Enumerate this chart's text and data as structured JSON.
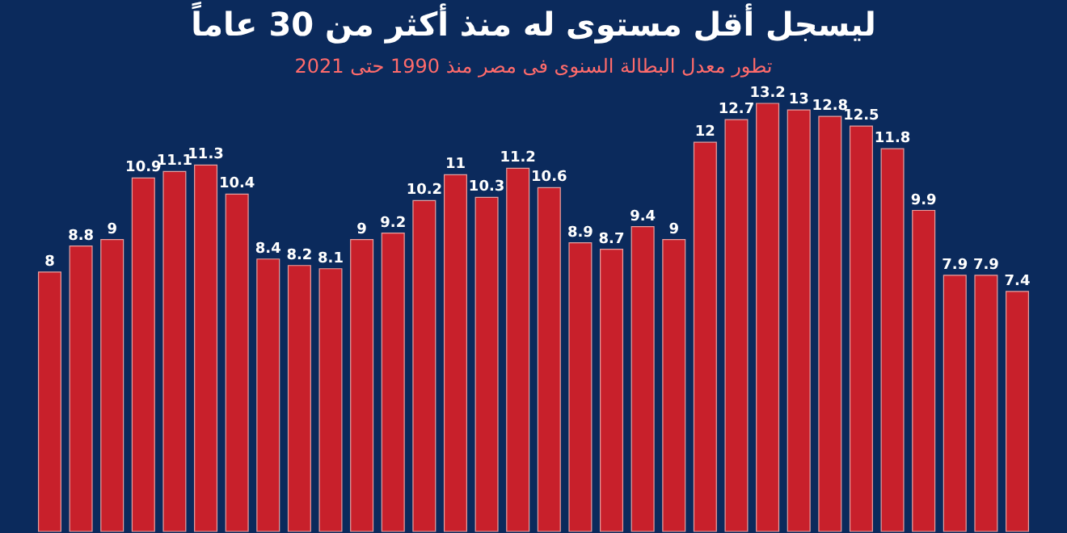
{
  "chart_data": {
    "type": "bar",
    "title": "ليسجل أقل مستوى له منذ أكثر من 30 عاماً",
    "subtitle": "تطور معدل البطالة السنوى فى مصر منذ 1990 حتى 2021",
    "categories": [
      null,
      null,
      null,
      null,
      null,
      null,
      null,
      null,
      null,
      null,
      null,
      null,
      null,
      null,
      null,
      null,
      null,
      null,
      null,
      null,
      null,
      null,
      null,
      null,
      null,
      null,
      null,
      null,
      null,
      null,
      null,
      null
    ],
    "values": [
      8,
      8.8,
      9,
      10.9,
      11.1,
      11.3,
      10.4,
      8.4,
      8.2,
      8.1,
      9,
      9.2,
      10.2,
      11,
      10.3,
      11.2,
      10.6,
      8.9,
      8.7,
      9.4,
      9,
      12,
      12.7,
      13.2,
      13,
      12.8,
      12.5,
      11.8,
      9.9,
      7.9,
      7.9,
      7.4
    ],
    "color": "#c8202b",
    "tick_labels": false,
    "data_labels": true
  }
}
